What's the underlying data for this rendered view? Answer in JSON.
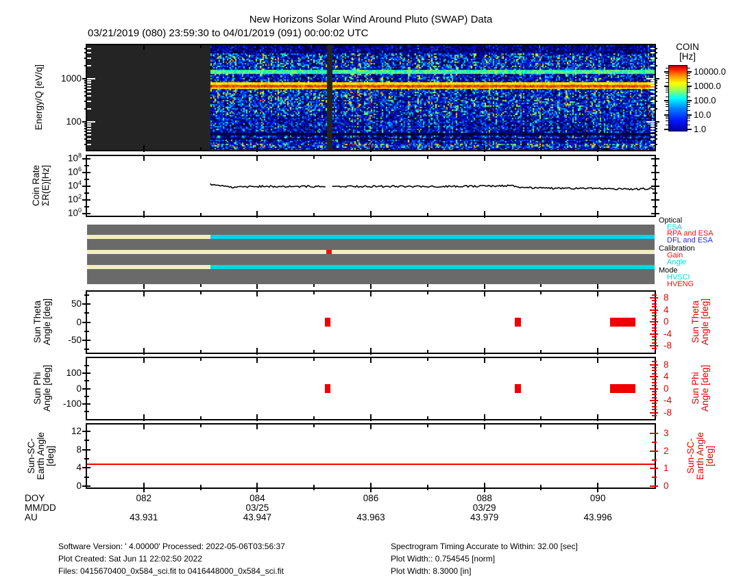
{
  "title": "New Horizons Solar Wind Around Pluto (SWAP) Data",
  "subtitle": "03/21/2019 (080) 23:59:30 to 04/01/2019 (091) 00:00:02 UTC",
  "colorbar": {
    "title1": "COIN",
    "title2": "[Hz]",
    "ticks": [
      "10000.0",
      "1000.0",
      "100.0",
      "10.0",
      "1.0"
    ]
  },
  "panels": {
    "spectrogram": {
      "ylabel": "Energy/Q [eV/q]"
    },
    "coin": {
      "ylabel1": "Coin Rate",
      "ylabel2": "ΣR(E)[Hz]"
    },
    "theta": {
      "ylabel1": "Sun Theta",
      "ylabel2": "Angle [deg]"
    },
    "phi": {
      "ylabel1": "Sun Phi",
      "ylabel2": "Angle [deg]"
    },
    "earth": {
      "ylabel1": "Sun-SC-",
      "ylabel2": "Earth Angle",
      "ylabel3": "[deg]"
    }
  },
  "x_axis": {
    "doy_header": "DOY",
    "mmdd_header": "MM/DD",
    "au_header": "AU",
    "range_doy": [
      81,
      91
    ],
    "ticks": [
      {
        "doy": 82,
        "doy_label": "082",
        "au": "43.931"
      },
      {
        "doy": 84,
        "doy_label": "084",
        "mmdd": "03/25",
        "au": "43.947"
      },
      {
        "doy": 86,
        "doy_label": "086",
        "au": "43.963"
      },
      {
        "doy": 88,
        "doy_label": "088",
        "mmdd": "03/29",
        "au": "43.979"
      },
      {
        "doy": 90,
        "doy_label": "090",
        "au": "43.996"
      }
    ],
    "minor_doys": [
      83,
      85,
      87,
      89
    ]
  },
  "legend": {
    "groups": [
      {
        "label": "Optical",
        "color": "#000000",
        "items": [
          {
            "label": "ESA",
            "color": "#00d7e6"
          },
          {
            "label": "RPA and ESA",
            "color": "#f01010"
          },
          {
            "label": "DFL and ESA",
            "color": "#2a2ad0"
          }
        ]
      },
      {
        "label": "Calibration",
        "color": "#000000",
        "items": [
          {
            "label": "Gain",
            "color": "#f01010"
          },
          {
            "label": "Angle",
            "color": "#00d7e6"
          }
        ]
      },
      {
        "label": "Mode",
        "color": "#000000",
        "items": [
          {
            "label": "HVSCI",
            "color": "#00d7e6"
          },
          {
            "label": "HVENG",
            "color": "#f01010"
          }
        ]
      }
    ]
  },
  "chart_data": [
    {
      "name": "swap_spectrogram",
      "type": "heatmap",
      "ylabel": "Energy/Q [eV/q]",
      "yscale": "log",
      "ylim_ev": [
        22,
        6000
      ],
      "yticks": [
        {
          "v": 1000,
          "label": "1000"
        },
        {
          "v": 100,
          "label": "100"
        }
      ],
      "xlim_doy": [
        81,
        91
      ],
      "no_data_doy": [
        81,
        83.17
      ],
      "data_gap_doy": [
        85.22,
        85.31
      ],
      "colorbar_range_hz": [
        1,
        10000
      ],
      "features": [
        {
          "kind": "band",
          "energy_ev": 1500,
          "color": "cyan",
          "approx_rate_hz": 100
        },
        {
          "kind": "band",
          "energy_ev": 700,
          "color": "red-yellow",
          "approx_rate_hz": 5000
        },
        {
          "kind": "background",
          "color": "blue-noise",
          "approx_rate_hz": 2
        }
      ]
    },
    {
      "name": "coin_rate",
      "type": "line",
      "ylabel": "Coin Rate ΣR(E)[Hz]",
      "yscale": "log",
      "ytick_exponents": [
        8,
        6,
        4,
        2,
        0
      ],
      "yminor_exponents": [
        7,
        5,
        3,
        1
      ],
      "ylim_exp": [
        -0.3,
        8.4
      ],
      "data_gap_doy": [
        85.22,
        85.31
      ],
      "series": [
        {
          "name": "total coincidence rate",
          "color": "#000000",
          "points_doy_hz": [
            [
              83.17,
              20000
            ],
            [
              83.3,
              13000
            ],
            [
              83.45,
              9000
            ],
            [
              83.55,
              7500
            ],
            [
              83.7,
              9500
            ],
            [
              83.85,
              8200
            ],
            [
              84.0,
              9000
            ],
            [
              84.15,
              10000
            ],
            [
              84.3,
              8500
            ],
            [
              84.5,
              9200
            ],
            [
              84.65,
              8200
            ],
            [
              84.8,
              9500
            ],
            [
              85.0,
              8800
            ],
            [
              85.2,
              9200
            ],
            [
              85.31,
              8200
            ],
            [
              85.5,
              9500
            ],
            [
              85.75,
              9000
            ],
            [
              86.0,
              9300
            ],
            [
              86.3,
              9200
            ],
            [
              86.6,
              9000
            ],
            [
              86.9,
              9200
            ],
            [
              87.2,
              9300
            ],
            [
              87.5,
              9500
            ],
            [
              87.8,
              10000
            ],
            [
              88.1,
              10500
            ],
            [
              88.35,
              11500
            ],
            [
              88.5,
              12500
            ],
            [
              88.55,
              8000
            ],
            [
              88.7,
              6200
            ],
            [
              88.9,
              5300
            ],
            [
              89.2,
              4900
            ],
            [
              89.5,
              4600
            ],
            [
              89.8,
              5000
            ],
            [
              90.0,
              4500
            ],
            [
              90.2,
              4200
            ],
            [
              90.4,
              3900
            ],
            [
              90.6,
              3600
            ],
            [
              90.75,
              4100
            ],
            [
              90.9,
              4400
            ],
            [
              91.0,
              4800
            ]
          ]
        }
      ]
    },
    {
      "name": "instrument_status",
      "type": "status_bars",
      "background": "#6a6a6a",
      "rows": [
        {
          "name": "optical",
          "segments": [
            {
              "doy": [
                81,
                83.17
              ],
              "color": "#f3eec2"
            },
            {
              "doy": [
                83.17,
                91
              ],
              "color": "#00d7e6"
            }
          ]
        },
        {
          "name": "calibration",
          "segments": [
            {
              "doy": [
                81,
                91
              ],
              "color": "#f3eec2"
            },
            {
              "doy": [
                85.22,
                85.31
              ],
              "color": "#ee1111"
            }
          ]
        },
        {
          "name": "mode",
          "segments": [
            {
              "doy": [
                81,
                83.17
              ],
              "color": "#f3eec2"
            },
            {
              "doy": [
                83.17,
                91
              ],
              "color": "#00d7e6"
            }
          ]
        }
      ]
    },
    {
      "name": "sun_theta",
      "type": "scatter",
      "ylabel": "Sun Theta Angle [deg]",
      "yticks": [
        {
          "v": 50,
          "label": "50"
        },
        {
          "v": 0,
          "label": "0"
        },
        {
          "v": -50,
          "label": "-50"
        }
      ],
      "yminor": [
        75,
        25,
        -25,
        -75
      ],
      "ylim": [
        -85,
        85
      ],
      "right_axis": {
        "label": "Sun Theta Angle [deg]",
        "color": "#e00000",
        "yticks": [
          {
            "v": 8,
            "label": "8"
          },
          {
            "v": 4,
            "label": "4"
          },
          {
            "v": 0,
            "label": "0"
          },
          {
            "v": -4,
            "label": "-4"
          },
          {
            "v": -8,
            "label": "-8"
          }
        ],
        "yminor": [
          9,
          7,
          6,
          5,
          3,
          2,
          1,
          -1,
          -2,
          -3,
          -5,
          -6,
          -7,
          -9
        ],
        "ylim": [
          -10,
          10
        ]
      },
      "marks": [
        {
          "doy": [
            85.19,
            85.29
          ],
          "value_deg": 0
        },
        {
          "doy": [
            88.54,
            88.65
          ],
          "value_deg": 0
        },
        {
          "doy": [
            90.21,
            90.66
          ],
          "value_deg": 0
        }
      ],
      "mark_color": "#f00000"
    },
    {
      "name": "sun_phi",
      "type": "scatter",
      "ylabel": "Sun Phi Angle [deg]",
      "yticks": [
        {
          "v": 100,
          "label": "100"
        },
        {
          "v": 0,
          "label": "0"
        },
        {
          "v": -100,
          "label": "-100"
        }
      ],
      "yminor": [
        150,
        50,
        -50,
        -150
      ],
      "ylim": [
        -198,
        198
      ],
      "right_axis": {
        "label": "Sun Phi Angle [deg]",
        "color": "#e00000",
        "yticks": [
          {
            "v": 8,
            "label": "8"
          },
          {
            "v": 4,
            "label": "4"
          },
          {
            "v": 0,
            "label": "0"
          },
          {
            "v": -4,
            "label": "-4"
          },
          {
            "v": -8,
            "label": "-8"
          }
        ],
        "yminor": [
          9,
          7,
          6,
          5,
          3,
          2,
          1,
          -1,
          -2,
          -3,
          -5,
          -6,
          -7,
          -9
        ],
        "ylim": [
          -10,
          10
        ]
      },
      "marks": [
        {
          "doy": [
            85.19,
            85.29
          ],
          "value_deg": 0
        },
        {
          "doy": [
            88.54,
            88.65
          ],
          "value_deg": 0
        },
        {
          "doy": [
            90.21,
            90.66
          ],
          "value_deg": 0
        }
      ],
      "mark_color": "#f00000"
    },
    {
      "name": "sun_sc_earth",
      "type": "line",
      "ylabel": "Sun-SC-Earth Angle [deg]",
      "yticks": [
        {
          "v": 12,
          "label": "12"
        },
        {
          "v": 8,
          "label": "8"
        },
        {
          "v": 4,
          "label": "4"
        },
        {
          "v": 0,
          "label": "0"
        }
      ],
      "yminor": [
        2,
        6,
        10
      ],
      "ylim": [
        -0.3,
        13.5
      ],
      "right_axis": {
        "label": "Sun-SC-Earth Angle [deg]",
        "color": "#e00000",
        "yticks": [
          {
            "v": 3,
            "label": "3"
          },
          {
            "v": 2,
            "label": "2"
          },
          {
            "v": 1,
            "label": "1"
          },
          {
            "v": 0,
            "label": "0"
          }
        ],
        "yminor": [
          0.5,
          1.5,
          2.5
        ],
        "ylim": [
          -0.1,
          3.5
        ]
      },
      "series": [
        {
          "name": "sun_sc_earth_angle",
          "color": "#f00000",
          "points_doy_deg": [
            [
              81,
              4.8
            ],
            [
              91,
              4.8
            ]
          ]
        }
      ]
    }
  ],
  "footer": {
    "left": [
      "Software Version:  ' 4.00000'  Processed: 2022-05-06T03:56:37",
      "Plot Created: Sat Jun 11 22:02:50 2022",
      "Files: 0415670400_0x584_sci.fit to 0416448000_0x584_sci.fit"
    ],
    "right": [
      "Spectrogram Timing Accurate to Within: 32.00 [sec]",
      "Plot Width:: 0.754545 [norm]",
      "Plot Width: 8.3000 [in]"
    ]
  }
}
